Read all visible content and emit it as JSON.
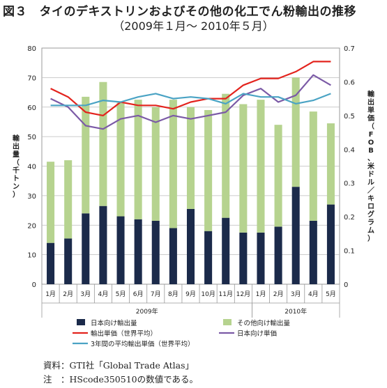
{
  "figure": {
    "title": "図３　タイのデキストリンおよびその他の化工でん粉輸出の推移",
    "subtitle": "（2009年１月～ 2010年５月）",
    "source": "資料：GTI社「Global Trade Atlas」",
    "note": "注　：HScode350510の数値である。"
  },
  "chart_data": {
    "type": "bar",
    "stacked": true,
    "categories": [
      "1月",
      "2月",
      "3月",
      "4月",
      "5月",
      "6月",
      "7月",
      "8月",
      "9月",
      "10月",
      "11月",
      "12月",
      "1月",
      "2月",
      "3月",
      "4月",
      "5月"
    ],
    "year_groups": [
      {
        "label": "2009年",
        "start": 0,
        "end": 11
      },
      {
        "label": "2010年",
        "start": 12,
        "end": 16
      }
    ],
    "ylabel": "輸出量（千トン）",
    "y2label": "輸出単価（FOB、米ドル／キログラム）",
    "ylim": [
      0,
      80
    ],
    "yticks": [
      0,
      10,
      20,
      30,
      40,
      50,
      60,
      70,
      80
    ],
    "y2lim": [
      0,
      0.7
    ],
    "y2ticks": [
      0,
      0.1,
      0.2,
      0.3,
      0.4,
      0.5,
      0.6,
      0.7
    ],
    "grid": true,
    "legend_position": "bottom",
    "series": [
      {
        "name": "日本向け輸出量",
        "kind": "bar",
        "axis": "left",
        "color": "#1b2a4a",
        "values": [
          14,
          15.5,
          24,
          26.5,
          23,
          22,
          21.5,
          19,
          25.5,
          18,
          22.5,
          17.5,
          17.5,
          19.5,
          33,
          21.5,
          27
        ]
      },
      {
        "name": "その他向け輸出量",
        "kind": "bar",
        "axis": "left",
        "color": "#b6d38f",
        "values": [
          27.5,
          26.5,
          39.5,
          42,
          38.5,
          40.5,
          38.5,
          43.5,
          34.5,
          41,
          42,
          43.5,
          45,
          34.5,
          37,
          37,
          27.5
        ]
      },
      {
        "name": "輸出単価（世界平均）",
        "kind": "line",
        "axis": "right",
        "color": "#e3231d",
        "values": [
          0.58,
          0.555,
          0.51,
          0.5,
          0.54,
          0.53,
          0.53,
          0.52,
          0.54,
          0.55,
          0.55,
          0.59,
          0.61,
          0.61,
          0.63,
          0.66,
          0.66
        ]
      },
      {
        "name": "日本向け単価",
        "kind": "line",
        "axis": "right",
        "color": "#7b5aa6",
        "values": [
          0.55,
          0.525,
          0.47,
          0.46,
          0.49,
          0.5,
          0.48,
          0.5,
          0.49,
          0.5,
          0.51,
          0.56,
          0.58,
          0.54,
          0.56,
          0.62,
          0.59
        ]
      },
      {
        "name": "3年間の平均輸出単価（世界平均）",
        "kind": "line",
        "axis": "right",
        "color": "#4aa3c4",
        "values": [
          0.53,
          0.53,
          0.53,
          0.545,
          0.54,
          0.555,
          0.565,
          0.55,
          0.555,
          0.55,
          0.535,
          0.565,
          0.555,
          0.555,
          0.535,
          0.545,
          0.565
        ]
      }
    ]
  }
}
